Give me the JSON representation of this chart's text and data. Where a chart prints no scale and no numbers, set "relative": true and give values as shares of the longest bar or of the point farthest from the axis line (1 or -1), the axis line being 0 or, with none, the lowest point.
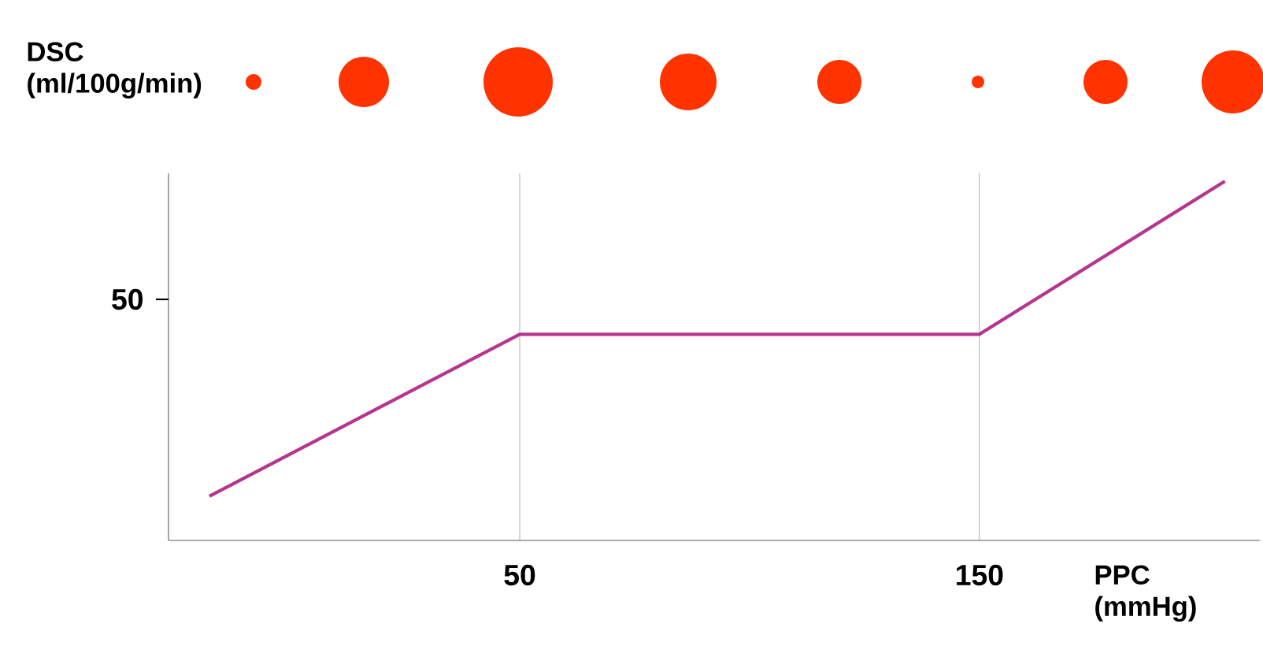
{
  "chart_data": {
    "type": "line",
    "relative": true,
    "xlabel": "PPC (mmHg)",
    "ylabel": "DSC (ml/100g/min)",
    "grid": "x",
    "annotations": [
      "50"
    ],
    "x": [
      -17.5,
      50,
      150,
      203.4
    ],
    "series": [
      {
        "color": "#b5358f",
        "values": [
          0.123,
          0.574,
          0.574,
          1
        ]
      }
    ],
    "xlim": [
      -26.4,
      211
    ],
    "xticks": [
      50,
      150
    ]
  }
}
